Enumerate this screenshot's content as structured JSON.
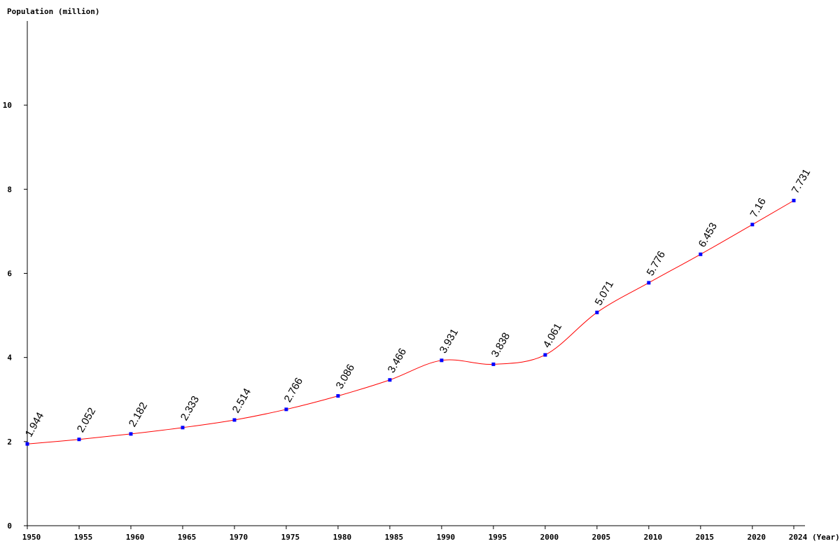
{
  "chart_data": {
    "type": "line",
    "ylabel": "Population (million)",
    "xlabel": "(Year)",
    "x": [
      1950,
      1955,
      1960,
      1965,
      1970,
      1975,
      1980,
      1985,
      1990,
      1995,
      2000,
      2005,
      2010,
      2015,
      2020,
      2024
    ],
    "series": [
      {
        "values": [
          1.944,
          2.052,
          2.182,
          2.333,
          2.514,
          2.766,
          3.086,
          3.466,
          3.931,
          3.838,
          4.061,
          5.071,
          5.776,
          6.453,
          7.16,
          7.731
        ],
        "labels": [
          "1.944",
          "2.052",
          "2.182",
          "2.333",
          "2.514",
          "2.766",
          "3.086",
          "3.466",
          "3.931",
          "3.838",
          "4.061",
          "5.071",
          "5.776",
          "6.453",
          "7.16",
          "7.731"
        ]
      }
    ],
    "xticks": [
      "1950",
      "1955",
      "1960",
      "1965",
      "1970",
      "1975",
      "1980",
      "1985",
      "1990",
      "1995",
      "2000",
      "2005",
      "2010",
      "2015",
      "2020",
      "2024"
    ],
    "yticks": [
      "0",
      "2",
      "4",
      "6",
      "8",
      "10"
    ],
    "ylim": [
      0,
      12
    ],
    "xlim": [
      1950,
      2024
    ],
    "grid": false,
    "legend": "none",
    "colors": {
      "line": "#ff0000",
      "marker": "#0000ff",
      "axis": "#000000"
    }
  }
}
